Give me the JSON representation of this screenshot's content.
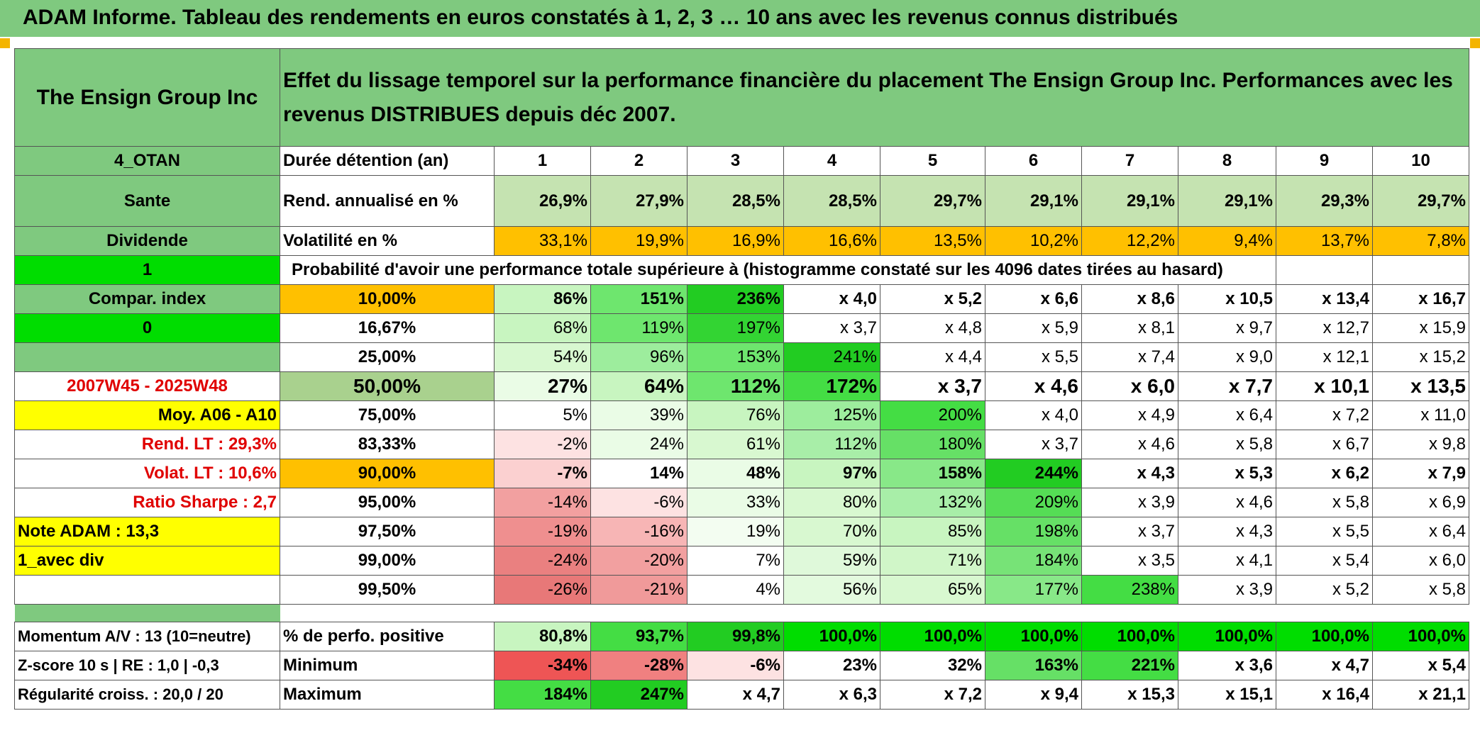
{
  "title": "ADAM Informe. Tableau des rendements en euros constatés à 1, 2, 3 … 10 ans avec les revenus connus distribués",
  "header": {
    "company": "The Ensign Group Inc",
    "description": "Effet du lissage temporel sur la performance financière du placement The Ensign Group Inc. Performances avec les revenus DISTRIBUES depuis déc 2007."
  },
  "left": {
    "code": "4_OTAN",
    "sector": "Sante",
    "type": "Dividende",
    "flag1": "1",
    "compar": "Compar. index",
    "flag0": "0",
    "period": "2007W45 - 2025W48",
    "moy": "Moy. A06 - A10",
    "rend_lt": "Rend. LT :   29,3%",
    "volat_lt": "Volat. LT :   10,6%",
    "sharpe": "Ratio Sharpe :    2,7",
    "note": "Note ADAM : 13,3",
    "avec_div": "1_avec div",
    "momentum": "Momentum A/V : 13 (10=neutre)",
    "zscore": "Z-score 10 s | RE : 1,0 | -0,3",
    "regularite": "Régularité croiss. : 20,0 / 20"
  },
  "rows": {
    "duree": {
      "label": "Durée détention (an)",
      "values": [
        "1",
        "2",
        "3",
        "4",
        "5",
        "6",
        "7",
        "8",
        "9",
        "10"
      ]
    },
    "rend": {
      "label": "Rend. annualisé en %",
      "values": [
        "26,9%",
        "27,9%",
        "28,5%",
        "28,5%",
        "29,7%",
        "29,1%",
        "29,1%",
        "29,1%",
        "29,3%",
        "29,7%"
      ]
    },
    "vol": {
      "label": "Volatilité en %",
      "values": [
        "33,1%",
        "19,9%",
        "16,9%",
        "16,6%",
        "13,5%",
        "10,2%",
        "12,2%",
        "9,4%",
        "13,7%",
        "7,8%"
      ]
    },
    "proba": "Probabilité d'avoir une performance totale supérieure à (histogramme constaté sur les 4096 dates tirées au hasard)",
    "perc": [
      {
        "p": "10,00%",
        "values": [
          "86%",
          "151%",
          "236%",
          "x 4,0",
          "x 5,2",
          "x 6,6",
          "x 8,6",
          "x 10,5",
          "x 13,4",
          "x 16,7"
        ]
      },
      {
        "p": "16,67%",
        "values": [
          "68%",
          "119%",
          "197%",
          "x 3,7",
          "x 4,8",
          "x 5,9",
          "x 8,1",
          "x 9,7",
          "x 12,7",
          "x 15,9"
        ]
      },
      {
        "p": "25,00%",
        "values": [
          "54%",
          "96%",
          "153%",
          "241%",
          "x 4,4",
          "x 5,5",
          "x 7,4",
          "x 9,0",
          "x 12,1",
          "x 15,2"
        ]
      },
      {
        "p": "50,00%",
        "values": [
          "27%",
          "64%",
          "112%",
          "172%",
          "x 3,7",
          "x 4,6",
          "x 6,0",
          "x 7,7",
          "x 10,1",
          "x 13,5"
        ]
      },
      {
        "p": "75,00%",
        "values": [
          "5%",
          "39%",
          "76%",
          "125%",
          "200%",
          "x 4,0",
          "x 4,9",
          "x 6,4",
          "x 7,2",
          "x 11,0"
        ]
      },
      {
        "p": "83,33%",
        "values": [
          "-2%",
          "24%",
          "61%",
          "112%",
          "180%",
          "x 3,7",
          "x 4,6",
          "x 5,8",
          "x 6,7",
          "x 9,8"
        ]
      },
      {
        "p": "90,00%",
        "values": [
          "-7%",
          "14%",
          "48%",
          "97%",
          "158%",
          "244%",
          "x 4,3",
          "x 5,3",
          "x 6,2",
          "x 7,9"
        ]
      },
      {
        "p": "95,00%",
        "values": [
          "-14%",
          "-6%",
          "33%",
          "80%",
          "132%",
          "209%",
          "x 3,9",
          "x 4,6",
          "x 5,8",
          "x 6,9"
        ]
      },
      {
        "p": "97,50%",
        "values": [
          "-19%",
          "-16%",
          "19%",
          "70%",
          "85%",
          "198%",
          "x 3,7",
          "x 4,3",
          "x 5,5",
          "x 6,4"
        ]
      },
      {
        "p": "99,00%",
        "values": [
          "-24%",
          "-20%",
          "7%",
          "59%",
          "71%",
          "184%",
          "x 3,5",
          "x 4,1",
          "x 5,4",
          "x 6,0"
        ]
      },
      {
        "p": "99,50%",
        "values": [
          "-26%",
          "-21%",
          "4%",
          "56%",
          "65%",
          "177%",
          "238%",
          "x 3,9",
          "x 5,2",
          "x 5,8"
        ]
      }
    ],
    "positive": {
      "label": "% de perfo. positive",
      "values": [
        "80,8%",
        "93,7%",
        "99,8%",
        "100,0%",
        "100,0%",
        "100,0%",
        "100,0%",
        "100,0%",
        "100,0%",
        "100,0%"
      ]
    },
    "minimum": {
      "label": "Minimum",
      "values": [
        "-34%",
        "-28%",
        "-6%",
        "23%",
        "32%",
        "163%",
        "221%",
        "x 3,6",
        "x 4,7",
        "x 5,4"
      ]
    },
    "maximum": {
      "label": "Maximum",
      "values": [
        "184%",
        "247%",
        "x 4,7",
        "x 6,3",
        "x 7,2",
        "x 9,4",
        "x 15,3",
        "x 15,1",
        "x 16,4",
        "x 21,1"
      ]
    }
  },
  "colors": {
    "header_green": "#7fc97f",
    "light_green": "#c5e3b1",
    "orange": "#ffc000",
    "yellow": "#ffff00",
    "bright_green": "#00dd00",
    "red_text": "#e00000"
  }
}
